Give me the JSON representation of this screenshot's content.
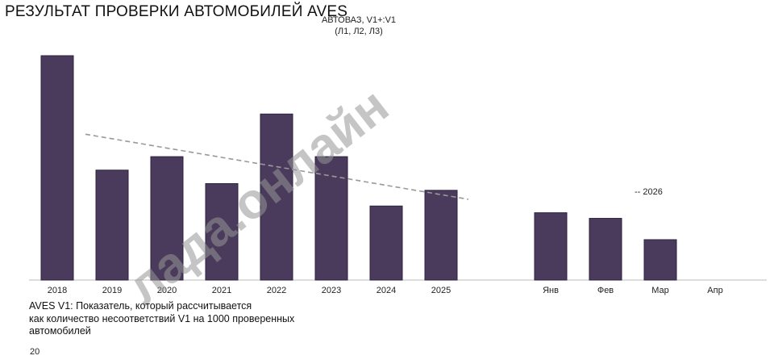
{
  "header": {
    "title": "РЕЗУЛЬТАТ ПРОВЕРКИ АВТОМОБИЛЕЙ AVES",
    "subtitle_line1": "АВТОВАЗ, V1+:V1",
    "subtitle_line2": "(Л1, Л2, Л3)"
  },
  "footer": {
    "note_line1": "AVES V1: Показатель, который рассчитывается",
    "note_line2": "как количество несоответствий V1 на 1000 проверенных",
    "note_line3": "автомобилей",
    "page_number": "20"
  },
  "watermark": "лада.онлайн",
  "colors": {
    "bar": "#4a3b5c",
    "bar_border": "#2e2340",
    "trend": "#999999",
    "axis": "#bbbbbb"
  },
  "chart_data": {
    "type": "bar",
    "title": "РЕЗУЛЬТАТ ПРОВЕРКИ АВТОМОБИЛЕЙ AVES",
    "subtitle": "АВТОВАЗ, V1+:V1 (Л1, Л2, Л3)",
    "categories": [
      "2018",
      "2019",
      "2020",
      "2021",
      "2022",
      "2023",
      "2024",
      "2025",
      "",
      "Янв",
      "Фев",
      "Мар",
      "Апр"
    ],
    "values": [
      100,
      49,
      55,
      43,
      74,
      55,
      33,
      40,
      null,
      30,
      27.5,
      18,
      null
    ],
    "ylim": [
      0,
      100
    ],
    "grid": false,
    "trendline": {
      "from_category": "2019",
      "to_category": "2025",
      "start": 65,
      "end": 36,
      "style": "dashed"
    },
    "annotations": [
      {
        "text": "-- 2026",
        "near_category": "Мар"
      }
    ]
  }
}
